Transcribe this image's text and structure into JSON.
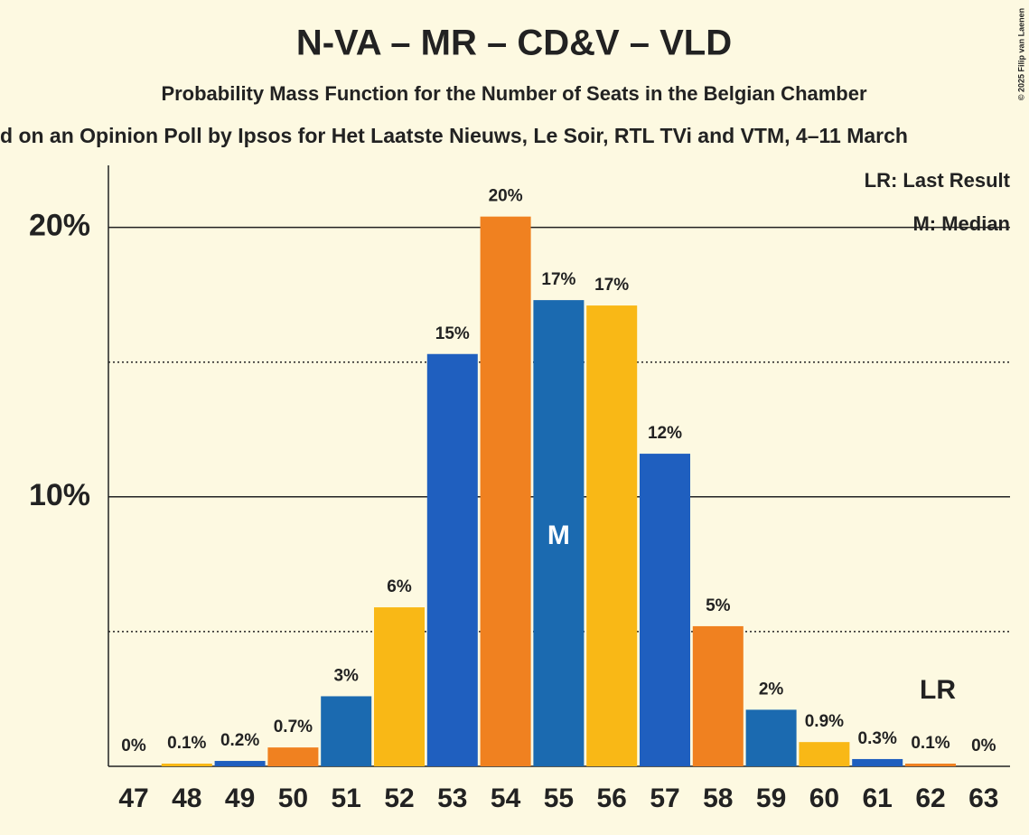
{
  "chart_data": {
    "type": "bar",
    "title": "N-VA – MR – CD&V – VLD",
    "subtitle": "Probability Mass Function for the Number of Seats in the Belgian Chamber",
    "subtitle2": "d on an Opinion Poll by Ipsos for Het Laatste Nieuws, Le Soir, RTL TVi and VTM, 4–11 March",
    "copyright": "© 2025 Filip van Laenen",
    "legend": [
      "LR: Last Result",
      "M: Median"
    ],
    "categories": [
      "47",
      "48",
      "49",
      "50",
      "51",
      "52",
      "53",
      "54",
      "55",
      "56",
      "57",
      "58",
      "59",
      "60",
      "61",
      "62",
      "63"
    ],
    "values": [
      0,
      0.1,
      0.2,
      0.7,
      2.6,
      5.9,
      15.3,
      20.4,
      17.3,
      17.1,
      11.6,
      5.2,
      2.1,
      0.9,
      0.27,
      0.1,
      0
    ],
    "value_labels": [
      "0%",
      "0.1%",
      "0.2%",
      "0.7%",
      "3%",
      "6%",
      "15%",
      "20%",
      "17%",
      "17%",
      "12%",
      "5%",
      "2%",
      "0.9%",
      "0.3%",
      "0.1%",
      "0%"
    ],
    "colors": [
      "#1b6ab0",
      "#f9b816",
      "#1f5fbf",
      "#f08120",
      "#1b6ab0",
      "#f9b816",
      "#1f5fbf",
      "#f08120",
      "#1b6ab0",
      "#f9b816",
      "#1f5fbf",
      "#f08120",
      "#1b6ab0",
      "#f9b816",
      "#1f5fbf",
      "#f08120",
      "#1b6ab0"
    ],
    "median": "55",
    "median_label": "M",
    "last_result": "62",
    "last_result_label": "LR",
    "ylim": [
      0,
      22.3
    ],
    "yticks": [
      {
        "value": 10,
        "label": "10%"
      },
      {
        "value": 20,
        "label": "20%"
      }
    ],
    "minor_yticks": [
      5,
      15
    ]
  }
}
